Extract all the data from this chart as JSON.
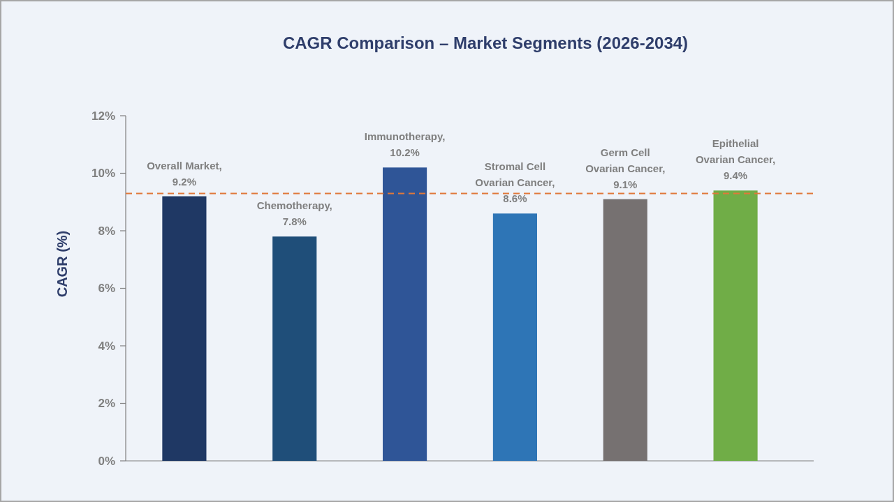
{
  "chart_data": {
    "type": "bar",
    "title": "CAGR Comparison – Market Segments (2026-2034)",
    "ylabel": "CAGR (%)",
    "categories": [
      null,
      null,
      null,
      null,
      null,
      null
    ],
    "values": [
      9.2,
      7.8,
      10.2,
      8.6,
      9.1,
      9.4
    ],
    "colors": [
      "#1f3864",
      "#1f4e79",
      "#2f5597",
      "#2e75b6",
      "#767171",
      "#70ad47"
    ],
    "value_labels": [
      "Overall Market, 9.2%",
      "Chemotherapy, 7.8%",
      "Immunotherapy, 10.2%",
      "Stromal Cell Ovarian Cancer, 8.6%",
      "Germ Cell Ovarian Cancer, 9.1%",
      "Epithelial Ovarian Cancer, 9.4%"
    ],
    "ylim": [
      0,
      12
    ],
    "yticks": [
      {
        "value": 0,
        "label": "0%"
      },
      {
        "value": 2,
        "label": "2%"
      },
      {
        "value": 4,
        "label": "4%"
      },
      {
        "value": 6,
        "label": "6%"
      },
      {
        "value": 8,
        "label": "8%"
      },
      {
        "value": 10,
        "label": "10%"
      },
      {
        "value": 12,
        "label": "12%"
      }
    ],
    "tick_labels": "y",
    "ref_lines": [
      {
        "axis": "y",
        "value": 9.3,
        "color": "#e0783a",
        "line_style": "dashed"
      }
    ]
  }
}
